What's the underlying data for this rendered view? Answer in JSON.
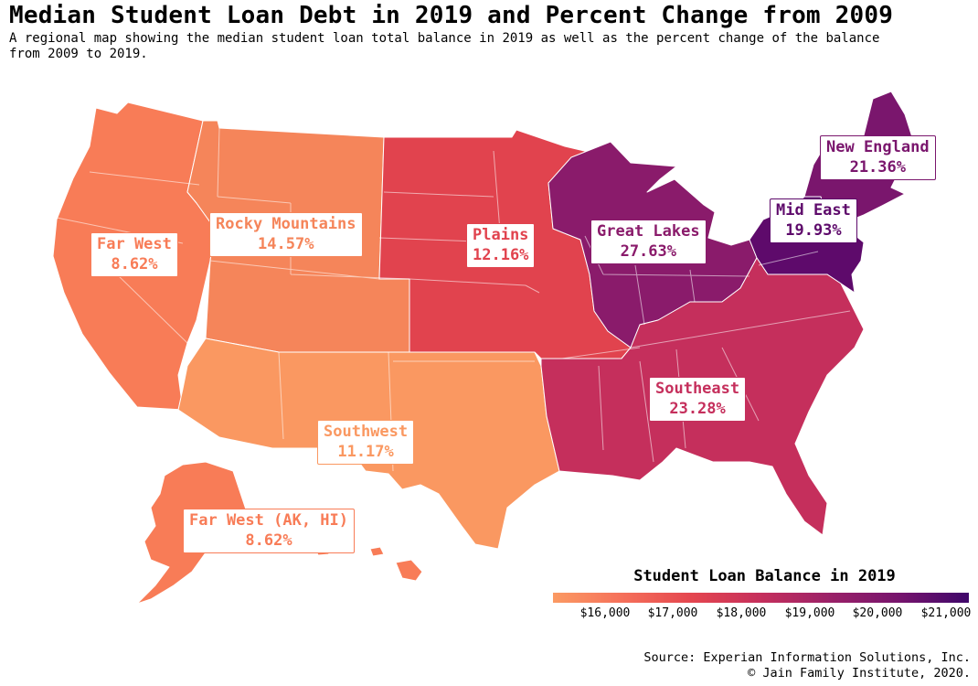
{
  "title": "Median Student Loan Debt in 2019 and Percent Change from 2009",
  "subtitle": "A regional map showing the median student loan total balance in 2019 as well as the percent change of the balance from 2009 to 2019.",
  "colors": {
    "far_west": "#f87c57",
    "rocky_mountains": "#f5855a",
    "southwest": "#fa9861",
    "plains": "#e1434e",
    "great_lakes": "#8a1b6b",
    "southeast": "#c52f5c",
    "mid_east": "#5e0a6b",
    "new_england": "#7a166d",
    "state_border": "#ffffff"
  },
  "regions": [
    {
      "id": "far_west",
      "name": "Far West",
      "change": "8.62%",
      "text_color": "#f87c57"
    },
    {
      "id": "rocky_mountains",
      "name": "Rocky Mountains",
      "change": "14.57%",
      "text_color": "#f5855a"
    },
    {
      "id": "plains",
      "name": "Plains",
      "change": "12.16%",
      "text_color": "#e1434e"
    },
    {
      "id": "great_lakes",
      "name": "Great Lakes",
      "change": "27.63%",
      "text_color": "#8a1b6b"
    },
    {
      "id": "new_england",
      "name": "New England",
      "change": "21.36%",
      "text_color": "#7a166d"
    },
    {
      "id": "mid_east",
      "name": "Mid East",
      "change": "19.93%",
      "text_color": "#5e0a6b"
    },
    {
      "id": "southeast",
      "name": "Southeast",
      "change": "23.28%",
      "text_color": "#c52f5c"
    },
    {
      "id": "southwest",
      "name": "Southwest",
      "change": "11.17%",
      "text_color": "#fa9861"
    },
    {
      "id": "far_west_ak_hi",
      "name": "Far West (AK, HI)",
      "change": "8.62%",
      "text_color": "#f87c57"
    }
  ],
  "legend": {
    "title": "Student Loan Balance in 2019",
    "ticks": [
      "$16,000",
      "$17,000",
      "$18,000",
      "$19,000",
      "$20,000",
      "$21,000"
    ],
    "gradient": [
      "#fb9a63",
      "#f5705a",
      "#e4464f",
      "#c52f5c",
      "#9a2168",
      "#76146d",
      "#3f076a"
    ]
  },
  "source": {
    "line1": "Source: Experian Information Solutions, Inc.",
    "line2": "© Jain Family Institute, 2020."
  }
}
